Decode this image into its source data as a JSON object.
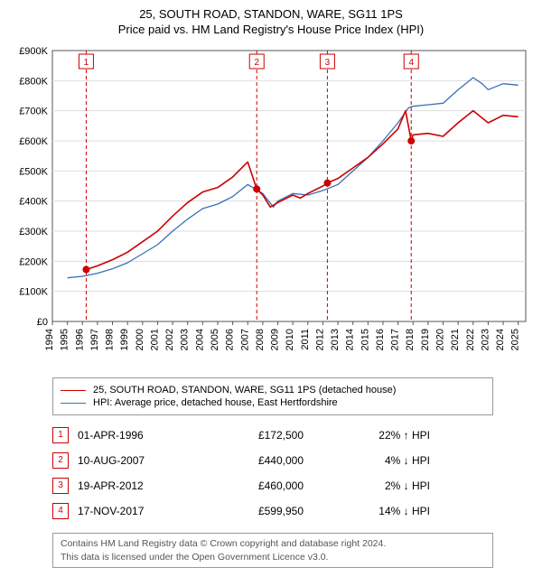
{
  "title": "25, SOUTH ROAD, STANDON, WARE, SG11 1PS",
  "subtitle": "Price paid vs. HM Land Registry's House Price Index (HPI)",
  "chart": {
    "type": "line",
    "background_color": "#ffffff",
    "plot_bg": "#ffffff",
    "grid_color": "#dddddd",
    "axis_color": "#555555",
    "x_years": [
      1994,
      1995,
      1996,
      1997,
      1998,
      1999,
      2000,
      2001,
      2002,
      2003,
      2004,
      2005,
      2006,
      2007,
      2008,
      2009,
      2010,
      2011,
      2012,
      2013,
      2014,
      2015,
      2016,
      2017,
      2018,
      2019,
      2020,
      2021,
      2022,
      2023,
      2024,
      2025
    ],
    "xlim": [
      1994,
      2025.5
    ],
    "ylim": [
      0,
      900000
    ],
    "ytick_step": 100000,
    "ylabel_prefix": "£",
    "ylabel_suffix": "K",
    "tick_fontsize": 11,
    "series": [
      {
        "name": "25, SOUTH ROAD, STANDON, WARE, SG11 1PS (detached house)",
        "color": "#cc0000",
        "width": 1.6,
        "points": [
          [
            1996.25,
            172500
          ],
          [
            1997,
            185000
          ],
          [
            1998,
            205000
          ],
          [
            1999,
            230000
          ],
          [
            2000,
            265000
          ],
          [
            2001,
            300000
          ],
          [
            2002,
            350000
          ],
          [
            2003,
            395000
          ],
          [
            2004,
            430000
          ],
          [
            2005,
            445000
          ],
          [
            2006,
            480000
          ],
          [
            2007,
            530000
          ],
          [
            2007.6,
            440000
          ],
          [
            2008,
            420000
          ],
          [
            2008.5,
            380000
          ],
          [
            2009,
            395000
          ],
          [
            2010,
            420000
          ],
          [
            2010.5,
            410000
          ],
          [
            2011,
            425000
          ],
          [
            2012,
            450000
          ],
          [
            2012.3,
            460000
          ],
          [
            2013,
            475000
          ],
          [
            2014,
            510000
          ],
          [
            2015,
            545000
          ],
          [
            2016,
            590000
          ],
          [
            2017,
            640000
          ],
          [
            2017.5,
            700000
          ],
          [
            2017.88,
            599950
          ],
          [
            2018,
            620000
          ],
          [
            2019,
            625000
          ],
          [
            2020,
            615000
          ],
          [
            2021,
            660000
          ],
          [
            2022,
            700000
          ],
          [
            2022.5,
            680000
          ],
          [
            2023,
            660000
          ],
          [
            2024,
            685000
          ],
          [
            2025,
            680000
          ]
        ]
      },
      {
        "name": "HPI: Average price, detached house, East Hertfordshire",
        "color": "#3b6fb6",
        "width": 1.3,
        "points": [
          [
            1995,
            145000
          ],
          [
            1996,
            150000
          ],
          [
            1997,
            160000
          ],
          [
            1998,
            175000
          ],
          [
            1999,
            195000
          ],
          [
            2000,
            225000
          ],
          [
            2001,
            255000
          ],
          [
            2002,
            300000
          ],
          [
            2003,
            340000
          ],
          [
            2004,
            375000
          ],
          [
            2005,
            390000
          ],
          [
            2006,
            415000
          ],
          [
            2007,
            455000
          ],
          [
            2008,
            425000
          ],
          [
            2008.7,
            380000
          ],
          [
            2009,
            400000
          ],
          [
            2010,
            425000
          ],
          [
            2011,
            420000
          ],
          [
            2012,
            435000
          ],
          [
            2013,
            455000
          ],
          [
            2014,
            500000
          ],
          [
            2015,
            545000
          ],
          [
            2016,
            600000
          ],
          [
            2017,
            660000
          ],
          [
            2017.7,
            710000
          ],
          [
            2018,
            715000
          ],
          [
            2019,
            720000
          ],
          [
            2020,
            725000
          ],
          [
            2021,
            770000
          ],
          [
            2022,
            810000
          ],
          [
            2022.6,
            790000
          ],
          [
            2023,
            770000
          ],
          [
            2024,
            790000
          ],
          [
            2025,
            785000
          ]
        ]
      }
    ],
    "markers": [
      {
        "n": 1,
        "x": 1996.25,
        "y": 172500
      },
      {
        "n": 2,
        "x": 2007.6,
        "y": 440000
      },
      {
        "n": 3,
        "x": 2012.3,
        "y": 460000
      },
      {
        "n": 4,
        "x": 2017.88,
        "y": 599950
      }
    ],
    "marker_style": {
      "dash_color": "#cc0000",
      "dash": "4,3",
      "box_border": "#cc0000",
      "box_fill": "#ffffff",
      "box_text": "#cc0000",
      "point_fill": "#cc0000",
      "box_size": 16,
      "box_fontsize": 10,
      "point_r": 4
    }
  },
  "legend": {
    "border_color": "#999999"
  },
  "sales": [
    {
      "n": 1,
      "date": "01-APR-1996",
      "price": "£172,500",
      "rel": "22% ↑ HPI"
    },
    {
      "n": 2,
      "date": "10-AUG-2007",
      "price": "£440,000",
      "rel": "4% ↓ HPI"
    },
    {
      "n": 3,
      "date": "19-APR-2012",
      "price": "£460,000",
      "rel": "2% ↓ HPI"
    },
    {
      "n": 4,
      "date": "17-NOV-2017",
      "price": "£599,950",
      "rel": "14% ↓ HPI"
    }
  ],
  "footnote": {
    "line1": "Contains HM Land Registry data © Crown copyright and database right 2024.",
    "line2": "This data is licensed under the Open Government Licence v3.0."
  }
}
